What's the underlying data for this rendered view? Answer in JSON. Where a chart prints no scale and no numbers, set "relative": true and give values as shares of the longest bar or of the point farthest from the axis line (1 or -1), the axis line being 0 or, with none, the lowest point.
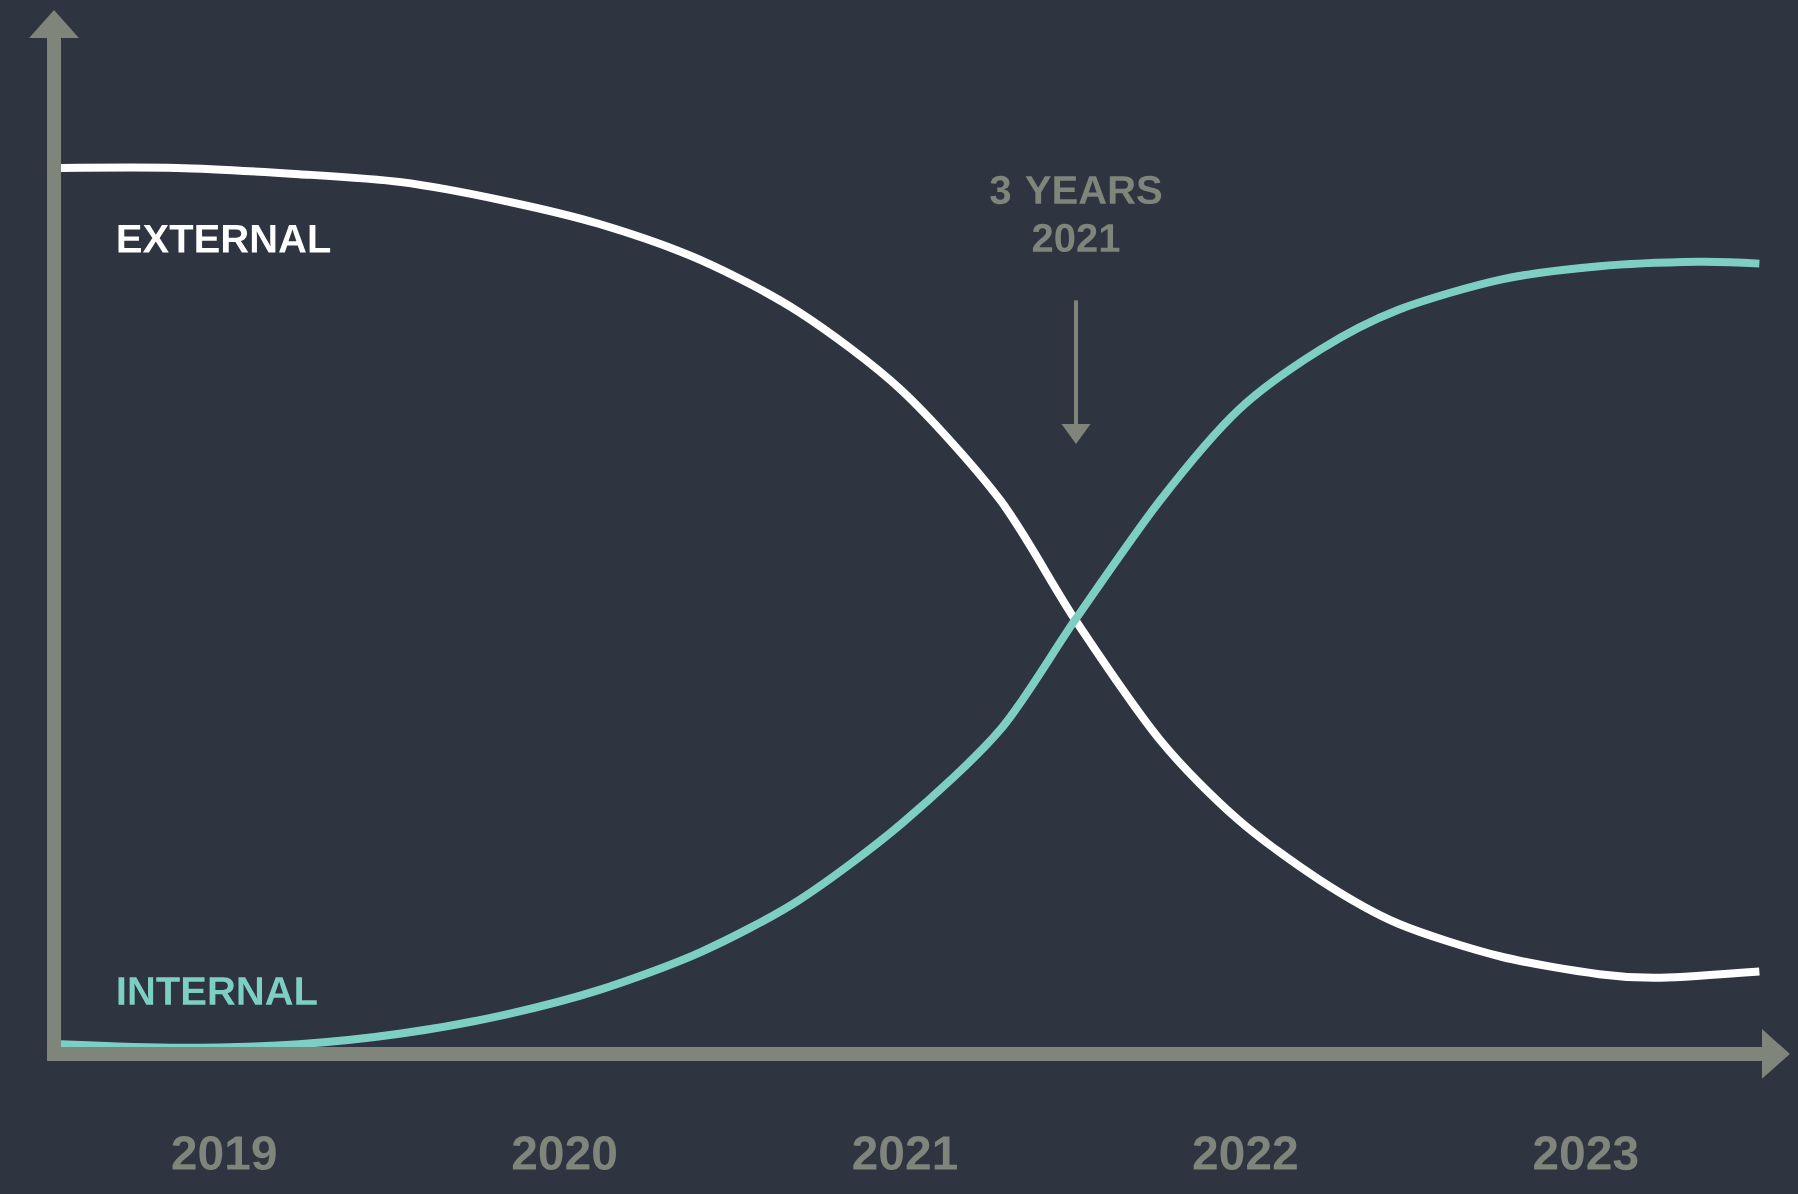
{
  "chart_data": {
    "type": "line",
    "relative": true,
    "xlim": [
      2018.5,
      2023.6
    ],
    "xticks": [
      2019,
      2020,
      2021,
      2022,
      2023
    ],
    "legend": false,
    "grid": false,
    "marker": "none",
    "line_style": "solid",
    "annotations": [
      "3 YEARS 2021"
    ],
    "series": [
      {
        "name": "EXTERNAL",
        "color": "#ffffff",
        "x": [
          2018.52,
          2018.86,
          2019.22,
          2019.52,
          2019.81,
          2020.1,
          2020.4,
          2020.69,
          2020.99,
          2021.28,
          2021.5,
          2021.75,
          2021.98,
          2022.22,
          2022.45,
          2022.75,
          2023.04,
          2023.22,
          2023.51
        ],
        "values": [
          1.0,
          1.0,
          0.993,
          0.984,
          0.964,
          0.937,
          0.896,
          0.837,
          0.749,
          0.625,
          0.49,
          0.354,
          0.264,
          0.196,
          0.147,
          0.11,
          0.09,
          0.086,
          0.093
        ]
      },
      {
        "name": "INTERNAL",
        "color": "#7dcfc4",
        "x": [
          2018.52,
          2018.87,
          2019.22,
          2019.52,
          2019.81,
          2020.1,
          2020.4,
          2020.69,
          2020.99,
          2021.28,
          2021.5,
          2021.75,
          2021.98,
          2022.22,
          2022.45,
          2022.75,
          2023.04,
          2023.33,
          2023.51
        ],
        "values": [
          0.011,
          0.007,
          0.011,
          0.023,
          0.043,
          0.072,
          0.115,
          0.174,
          0.26,
          0.366,
          0.49,
          0.625,
          0.727,
          0.795,
          0.84,
          0.874,
          0.889,
          0.894,
          0.892
        ]
      }
    ]
  }
}
